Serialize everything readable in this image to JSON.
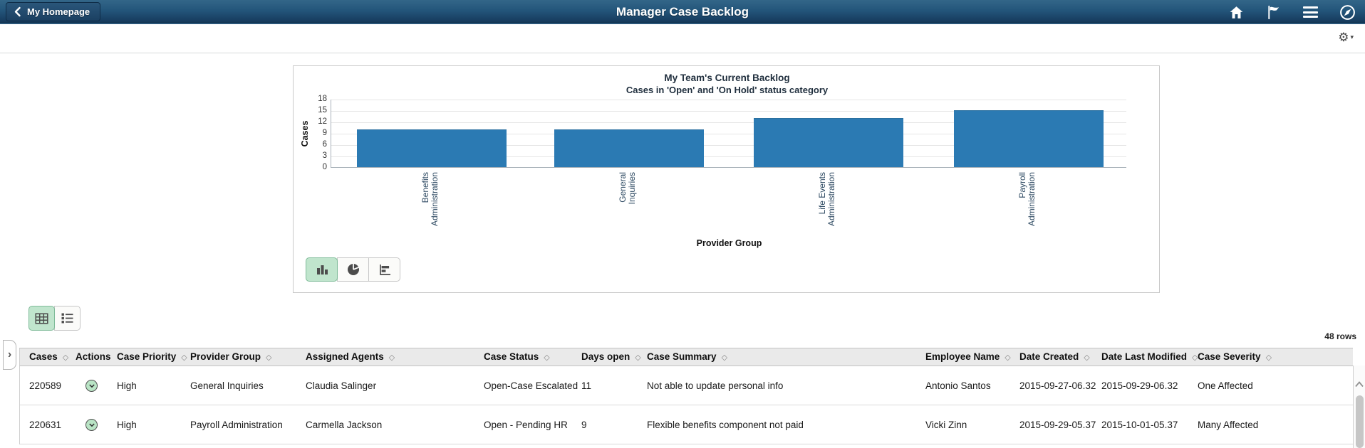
{
  "banner": {
    "back_button": "My Homepage",
    "title": "Manager Case Backlog"
  },
  "subheader": {
    "gear_icon": "gear-icon"
  },
  "chart_data": {
    "type": "bar",
    "title": "My Team's Current Backlog",
    "subtitle": "Cases in 'Open' and 'On Hold' status category",
    "categories": [
      "Benefits Administration",
      "General Inquiries",
      "Life Events Administration",
      "Payroll Administration"
    ],
    "category_label_lines": [
      [
        "Benefits",
        "Administration"
      ],
      [
        "General",
        "Inquiries"
      ],
      [
        "Life Events",
        "Administration"
      ],
      [
        "Payroll",
        "Administration"
      ]
    ],
    "values": [
      10,
      10,
      13,
      15
    ],
    "xlabel": "Provider Group",
    "ylabel": "Cases",
    "ylim": [
      0,
      18
    ],
    "yticks": [
      0,
      3,
      6,
      9,
      12,
      15,
      18
    ],
    "bar_color": "#2b7ab3",
    "grid": true,
    "legend_position": "none"
  },
  "chart_toolbar": {
    "types": [
      "bar-chart",
      "pie-chart",
      "horizontal-bar-chart"
    ],
    "selected": "bar-chart"
  },
  "view_toolbar": {
    "options": [
      "grid-view",
      "list-view"
    ],
    "selected": "grid-view"
  },
  "grid": {
    "row_count": "48 rows",
    "sort_icon": "◇",
    "columns": [
      {
        "label": "Cases",
        "sortable": true
      },
      {
        "label": "Actions",
        "sortable": false
      },
      {
        "label": "Case Priority",
        "sortable": true
      },
      {
        "label": "Provider Group",
        "sortable": true
      },
      {
        "label": "Assigned Agents",
        "sortable": true
      },
      {
        "label": "Case Status",
        "sortable": true
      },
      {
        "label": "Days open",
        "sortable": true
      },
      {
        "label": "Case Summary",
        "sortable": true
      },
      {
        "label": "Employee Name",
        "sortable": true
      },
      {
        "label": "Date Created",
        "sortable": true
      },
      {
        "label": "Date Last Modified",
        "sortable": true
      },
      {
        "label": "Case Severity",
        "sortable": true
      }
    ],
    "rows": [
      {
        "cases": "220589",
        "priority": "High",
        "provider_group": "General Inquiries",
        "assigned_agents": "Claudia Salinger",
        "case_status": "Open-Case Escalated",
        "days_open": "11",
        "case_summary": "Not able to update personal info",
        "employee_name": "Antonio Santos",
        "date_created": "2015-09-27-06.32",
        "date_last_modified": "2015-09-29-06.32",
        "case_severity": "One Affected"
      },
      {
        "cases": "220631",
        "priority": "High",
        "provider_group": "Payroll Administration",
        "assigned_agents": "Carmella Jackson",
        "case_status": "Open - Pending HR",
        "days_open": "9",
        "case_summary": "Flexible benefits component not paid",
        "employee_name": "Vicki Zinn",
        "date_created": "2015-09-29-05.37",
        "date_last_modified": "2015-10-01-05.37",
        "case_severity": "Many Affected"
      }
    ]
  },
  "colors": {
    "banner_top": "#336688",
    "banner_bottom": "#12324f",
    "bar": "#2b7ab3",
    "selected_green": "#c0e5cd",
    "header_row_bg": "#eaeaea"
  }
}
